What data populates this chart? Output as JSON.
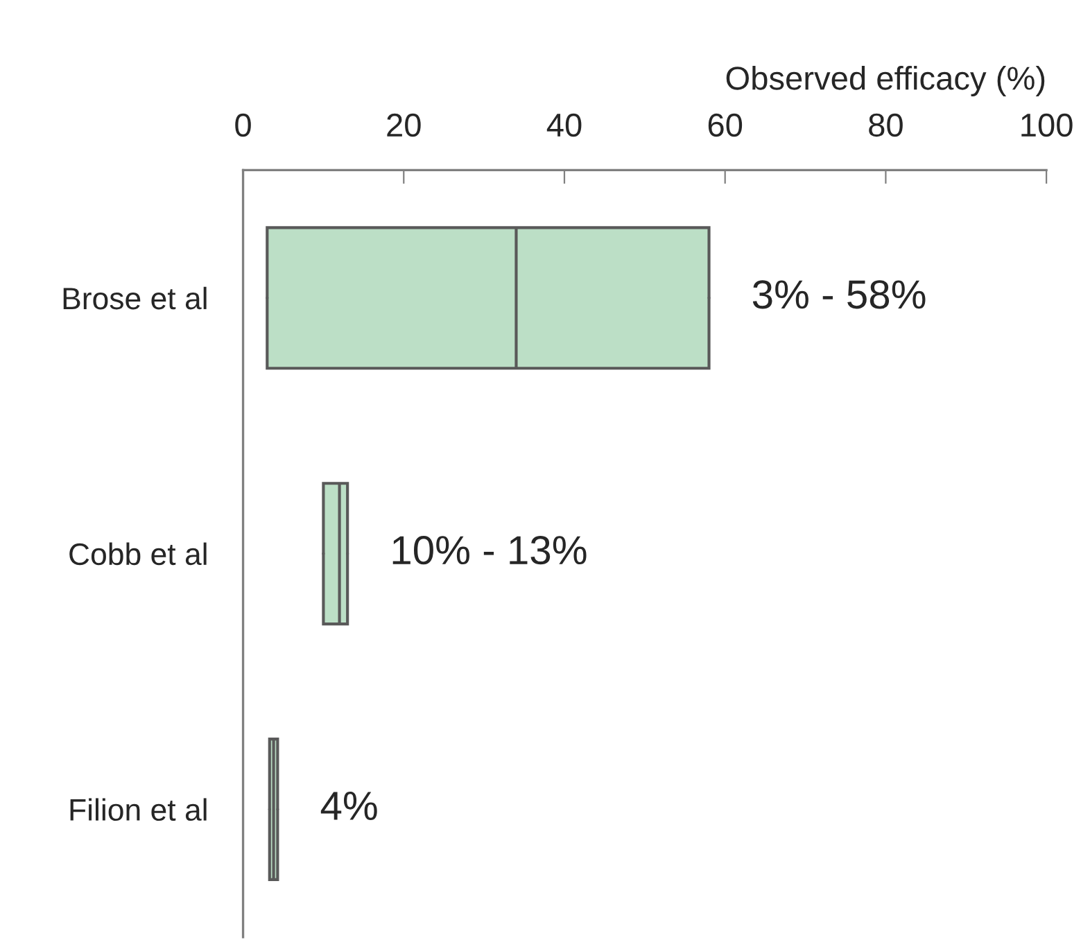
{
  "chart_data": {
    "type": "box",
    "orientation": "horizontal",
    "xlabel": "Observed efficacy (%)",
    "categories": [
      "Brose et al",
      "Cobb et al",
      "Filion et al"
    ],
    "boxes": [
      {
        "low": 3,
        "q1": 3,
        "median": 34,
        "q3": 58,
        "high": 58
      },
      {
        "low": 10,
        "q1": 10,
        "median": 12,
        "q3": 13,
        "high": 13
      },
      {
        "low": 3.3,
        "q1": 3.3,
        "median": 3.8,
        "q3": 4.3,
        "high": 4.3
      }
    ],
    "color": "#bcdfc6",
    "xlim": [
      0,
      100
    ],
    "xticks": [
      0,
      20,
      40,
      60,
      80,
      100
    ],
    "grid": false,
    "annotations": [
      {
        "text": "3% - 58%",
        "x": 58,
        "y": "Brose et al"
      },
      {
        "text": "10% - 13%",
        "x": 13,
        "y": "Cobb et al"
      },
      {
        "text": "4%",
        "x": 4.3,
        "y": "Filion et al"
      }
    ]
  }
}
